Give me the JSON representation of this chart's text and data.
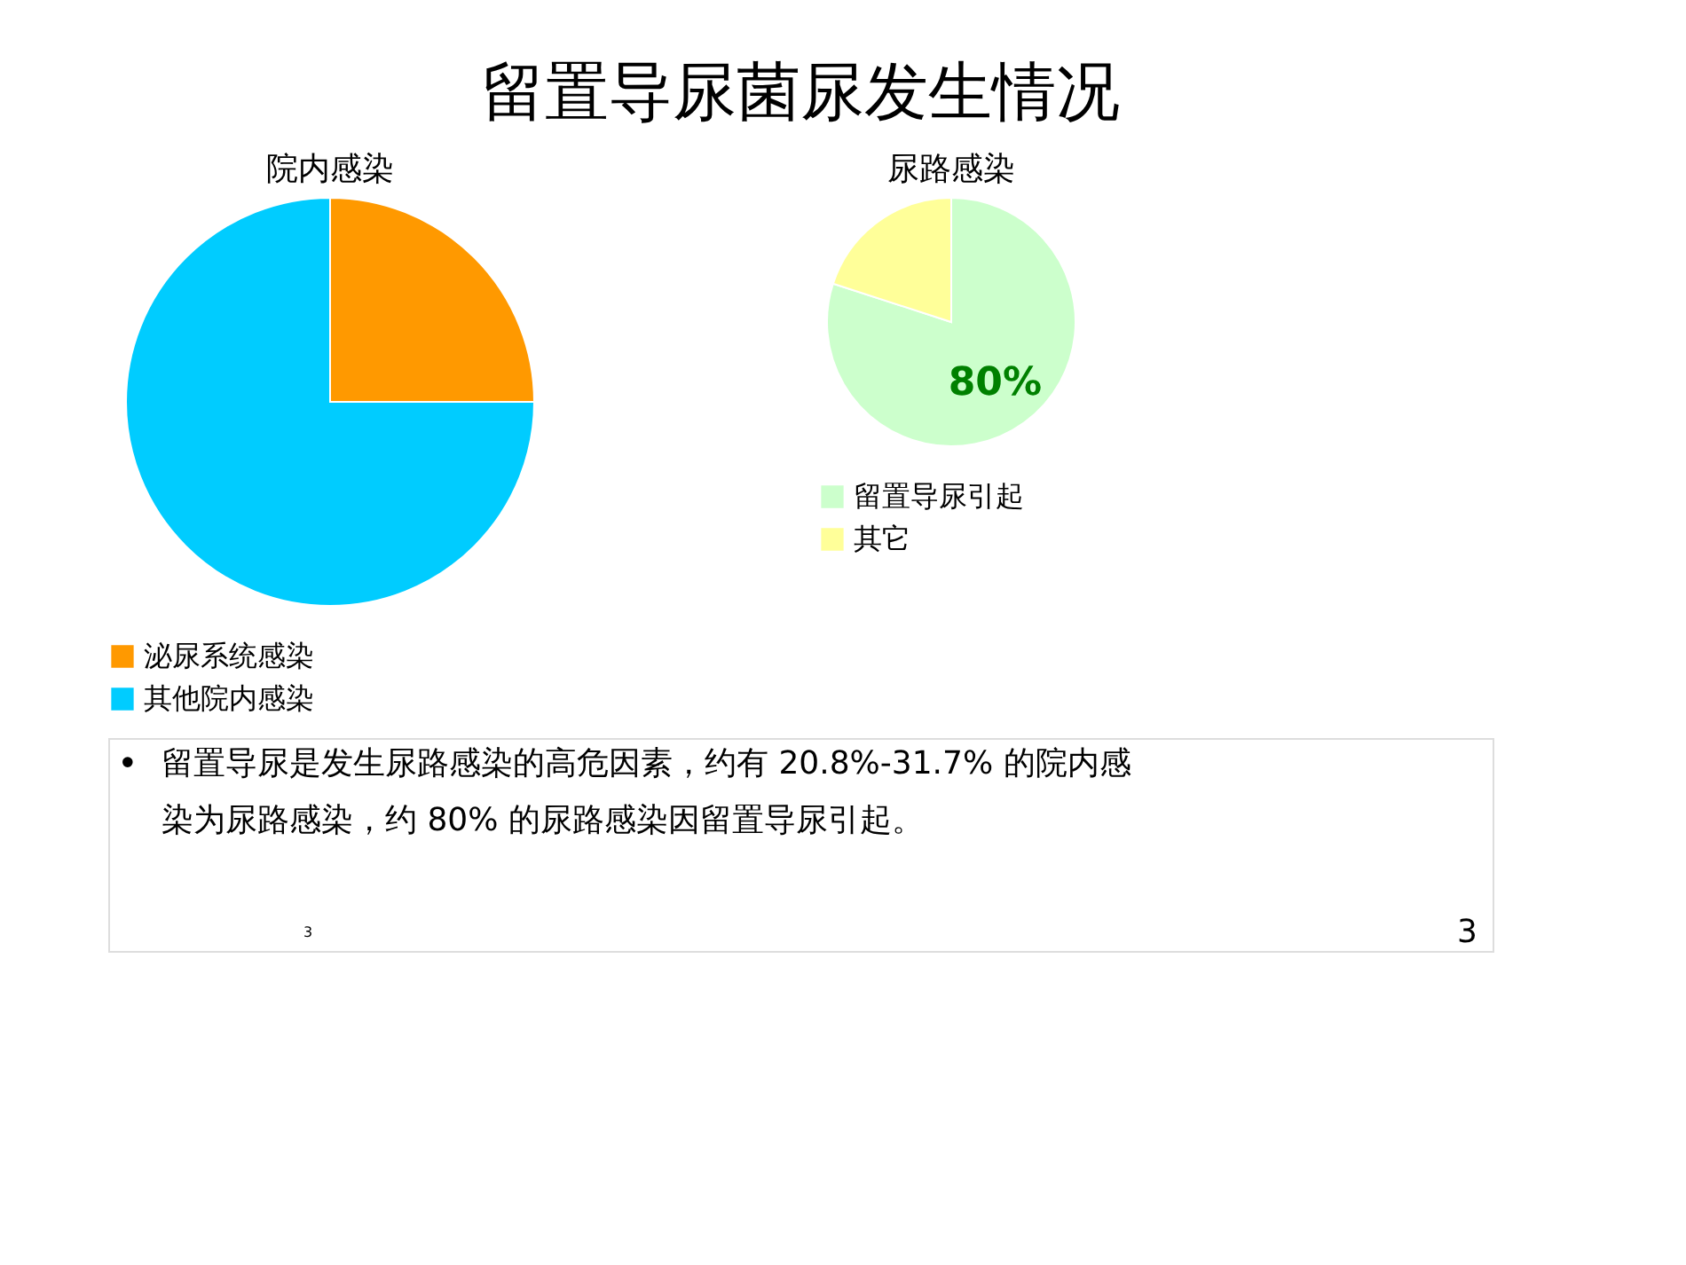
{
  "chart_data": [
    {
      "type": "pie",
      "title": "留置导尿菌尿发生情况",
      "subtitle": "院内感染",
      "categories": [
        "泌尿系统感染",
        "其他院内感染"
      ],
      "values": [
        25,
        75
      ],
      "colors": [
        "#ff9900",
        "#00ccff"
      ],
      "legend": "bottom",
      "annotations": [
        "•",
        "留置导尿是发生尿路感染的高危因素，约有 20.8%-31.7% 的院内感染为尿路感染，约 80% 的尿路感染因留置导尿引起。",
        "3",
        "3"
      ]
    },
    {
      "type": "pie",
      "title": "尿路感染",
      "categories": [
        "留置导尿引起",
        "其它"
      ],
      "values": [
        80,
        20
      ],
      "colors": [
        "#ccffcc",
        "#ffff99"
      ],
      "value_labels": [
        "80%",
        null
      ],
      "legend": "bottom"
    }
  ]
}
